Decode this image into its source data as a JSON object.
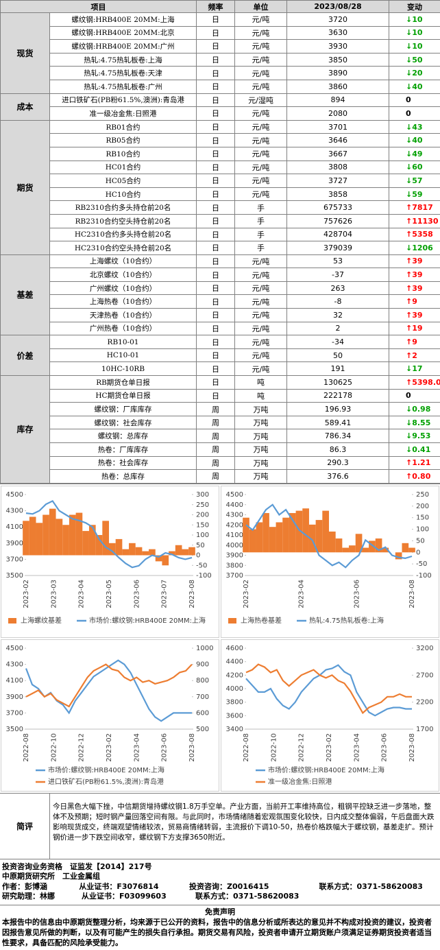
{
  "table": {
    "header": [
      "项目",
      "频率",
      "单位",
      "2023/08/28",
      "变动"
    ],
    "groups": [
      {
        "name": "现货",
        "rows": [
          [
            "螺纹钢:HRB400E 20MM:上海",
            "日",
            "元/吨",
            "3720",
            "↓10"
          ],
          [
            "螺纹钢:HRB400E 20MM:北京",
            "日",
            "元/吨",
            "3630",
            "↓10"
          ],
          [
            "螺纹钢:HRB400E 20MM:广州",
            "日",
            "元/吨",
            "3930",
            "↓10"
          ],
          [
            "热轧:4.75热轧板卷:上海",
            "日",
            "元/吨",
            "3850",
            "↓50"
          ],
          [
            "热轧:4.75热轧板卷:天津",
            "日",
            "元/吨",
            "3890",
            "↓20"
          ],
          [
            "热轧:4.75热轧板卷:广州",
            "日",
            "元/吨",
            "3860",
            "↓40"
          ]
        ]
      },
      {
        "name": "成本",
        "rows": [
          [
            "进口铁矿石(PB粉61.5%,澳洲):青岛港",
            "日",
            "元/湿吨",
            "894",
            "0"
          ],
          [
            "准一级冶金焦:日照港",
            "日",
            "元/吨",
            "2080",
            "0"
          ]
        ]
      },
      {
        "name": "期货",
        "rows": [
          [
            "RB01合约",
            "日",
            "元/吨",
            "3701",
            "↓43"
          ],
          [
            "RB05合约",
            "日",
            "元/吨",
            "3646",
            "↓40"
          ],
          [
            "RB10合约",
            "日",
            "元/吨",
            "3667",
            "↓49"
          ],
          [
            "HC01合约",
            "日",
            "元/吨",
            "3808",
            "↓60"
          ],
          [
            "HC05合约",
            "日",
            "元/吨",
            "3727",
            "↓57"
          ],
          [
            "HC10合约",
            "日",
            "元/吨",
            "3858",
            "↓59"
          ],
          [
            "RB2310合约多头持仓前20名",
            "日",
            "手",
            "675733",
            "↑7817"
          ],
          [
            "RB2310合约空头持仓前20名",
            "日",
            "手",
            "757626",
            "↑11130"
          ],
          [
            "HC2310合约多头持仓前20名",
            "日",
            "手",
            "428704",
            "↑5358"
          ],
          [
            "HC2310合约空头持仓前20名",
            "日",
            "手",
            "379039",
            "↓1206"
          ]
        ]
      },
      {
        "name": "基差",
        "rows": [
          [
            "上海螺纹（10合约）",
            "日",
            "元/吨",
            "53",
            "↑39"
          ],
          [
            "北京螺纹（10合约）",
            "日",
            "元/吨",
            "-37",
            "↑39"
          ],
          [
            "广州螺纹（10合约）",
            "日",
            "元/吨",
            "263",
            "↑39"
          ],
          [
            "上海热卷（10合约）",
            "日",
            "元/吨",
            "-8",
            "↑9"
          ],
          [
            "天津热卷（10合约）",
            "日",
            "元/吨",
            "32",
            "↑39"
          ],
          [
            "广州热卷（10合约）",
            "日",
            "元/吨",
            "2",
            "↑19"
          ]
        ]
      },
      {
        "name": "价差",
        "rows": [
          [
            "RB10-01",
            "日",
            "元/吨",
            "-34",
            "↑9"
          ],
          [
            "HC10-01",
            "日",
            "元/吨",
            "50",
            "↑2"
          ],
          [
            "10HC-10RB",
            "日",
            "元/吨",
            "191",
            "↓17"
          ]
        ]
      },
      {
        "name": "库存",
        "rows": [
          [
            "RB期货仓单日报",
            "日",
            "吨",
            "130625",
            "↑5398.00"
          ],
          [
            "HC期货仓单日报",
            "日",
            "吨",
            "222178",
            "0"
          ],
          [
            "螺纹钢：厂库库存",
            "周",
            "万吨",
            "196.93",
            "↓0.98"
          ],
          [
            "螺纹钢：社会库存",
            "周",
            "万吨",
            "589.41",
            "↓8.55"
          ],
          [
            "螺纹钢：总库存",
            "周",
            "万吨",
            "786.34",
            "↓9.53"
          ],
          [
            "热卷：厂库库存",
            "周",
            "万吨",
            "86.3",
            "↓0.41"
          ],
          [
            "热卷：社会库存",
            "周",
            "万吨",
            "290.3",
            "↑1.21"
          ],
          [
            "热卷：总库存",
            "周",
            "万吨",
            "376.6",
            "↑0.80"
          ]
        ]
      }
    ]
  },
  "chart_data": [
    {
      "type": "combo",
      "xticks": [
        "2023-02",
        "2023-03",
        "2023-04",
        "2023-05",
        "2023-06",
        "2023-07",
        "2023-08"
      ],
      "ylim": [
        3500,
        4500
      ],
      "yticks": [
        3500,
        3700,
        3900,
        4100,
        4300,
        4500
      ],
      "y2lim": [
        -100,
        300
      ],
      "y2ticks": [
        -100,
        -50,
        0,
        50,
        100,
        150,
        200,
        250,
        300
      ],
      "series": [
        {
          "name": "上海螺纹基差",
          "type": "bar",
          "axis": "y2",
          "color": "#ed7d31",
          "values": [
            170,
            190,
            160,
            200,
            230,
            180,
            150,
            200,
            210,
            120,
            150,
            100,
            170,
            60,
            80,
            30,
            60,
            40,
            20,
            30,
            -30,
            -50,
            20,
            50,
            30,
            40
          ]
        },
        {
          "name": "市场价:螺纹钢:HRB400E 20MM:上海",
          "type": "line",
          "color": "#5b9bd5",
          "values": [
            4270,
            4260,
            4300,
            4380,
            4420,
            4300,
            4250,
            4200,
            4180,
            4150,
            4100,
            3950,
            3850,
            3800,
            3720,
            3650,
            3600,
            3620,
            3700,
            3750,
            3730,
            3780,
            3760,
            3720,
            3700,
            3720
          ]
        }
      ]
    },
    {
      "type": "combo",
      "xticks": [
        "2023-02",
        "2023-04",
        "2023-06",
        "2023-08"
      ],
      "ylim": [
        3700,
        4500
      ],
      "yticks": [
        3700,
        3800,
        3900,
        4000,
        4100,
        4200,
        4300,
        4400,
        4500
      ],
      "y2lim": [
        -100,
        250
      ],
      "y2ticks": [
        -100,
        -50,
        0,
        50,
        100,
        150,
        200,
        250
      ],
      "series": [
        {
          "name": "上海热卷基差",
          "type": "bar",
          "axis": "y2",
          "color": "#ed7d31",
          "values": [
            150,
            100,
            130,
            170,
            110,
            130,
            150,
            170,
            180,
            190,
            120,
            140,
            180,
            90,
            60,
            20,
            30,
            80,
            20,
            50,
            60,
            20,
            0,
            -30,
            40,
            20
          ]
        },
        {
          "name": "热轧:4.75热轧板卷:上海",
          "type": "line",
          "color": "#5b9bd5",
          "values": [
            4200,
            4150,
            4250,
            4350,
            4400,
            4300,
            4350,
            4250,
            4150,
            4100,
            4050,
            3900,
            3850,
            3800,
            3830,
            3780,
            3850,
            3900,
            4050,
            4000,
            3950,
            3980,
            3900,
            3880,
            3870,
            3890
          ]
        }
      ]
    },
    {
      "type": "line",
      "xticks": [
        "2022-08",
        "2022-10",
        "2022-12",
        "2023-02",
        "2023-04",
        "2023-06",
        "2023-08"
      ],
      "ylim": [
        3500,
        4500
      ],
      "yticks": [
        3500,
        3700,
        3900,
        4100,
        4300,
        4500
      ],
      "y2lim": [
        500,
        1000
      ],
      "y2ticks": [
        500,
        600,
        700,
        800,
        900,
        1000
      ],
      "series": [
        {
          "name": "市场价:螺纹钢:HRB400E 20MM:上海",
          "type": "line",
          "color": "#5b9bd5",
          "values": [
            4250,
            4050,
            4000,
            3900,
            3950,
            3850,
            3800,
            3700,
            3850,
            3950,
            4050,
            4150,
            4200,
            4250,
            4300,
            4350,
            4300,
            4200,
            4050,
            3900,
            3750,
            3650,
            3600,
            3650,
            3700,
            3700,
            3700,
            3700
          ]
        },
        {
          "name": "进口铁矿石(PB粉61.5%,澳洲):青岛港",
          "type": "line",
          "axis": "y2",
          "color": "#ed7d31",
          "values": [
            700,
            720,
            740,
            700,
            720,
            680,
            660,
            640,
            700,
            760,
            820,
            860,
            880,
            900,
            870,
            860,
            820,
            800,
            820,
            790,
            800,
            780,
            790,
            800,
            820,
            850,
            860,
            900
          ]
        }
      ]
    },
    {
      "type": "line",
      "xticks": [
        "2022-08",
        "2022-10",
        "2022-12",
        "2023-02",
        "2023-04",
        "2023-06",
        "2023-08"
      ],
      "ylim": [
        3400,
        4600
      ],
      "yticks": [
        3400,
        3600,
        3800,
        4000,
        4200,
        4400,
        4600
      ],
      "y2lim": [
        1700,
        3200
      ],
      "y2ticks": [
        1700,
        2200,
        2700,
        3200
      ],
      "series": [
        {
          "name": "市场价:螺纹钢:HRB400E 20MM:上海",
          "type": "line",
          "color": "#5b9bd5",
          "values": [
            4150,
            4050,
            3950,
            3950,
            4000,
            3850,
            3750,
            3700,
            3800,
            3950,
            4050,
            4150,
            4200,
            4280,
            4300,
            4350,
            4250,
            4200,
            3950,
            3800,
            3650,
            3600,
            3650,
            3700,
            3720,
            3720,
            3700,
            3700
          ]
        },
        {
          "name": "准一级冶金焦:日照港",
          "type": "line",
          "axis": "y2",
          "color": "#ed7d31",
          "values": [
            2750,
            2800,
            2900,
            2850,
            2750,
            2800,
            2600,
            2500,
            2600,
            2700,
            2750,
            2800,
            2700,
            2650,
            2700,
            2600,
            2550,
            2400,
            2200,
            2000,
            2100,
            2150,
            2200,
            2300,
            2300,
            2350,
            2300,
            2300
          ]
        }
      ]
    }
  ],
  "review": {
    "label": "简评",
    "text": "今日黑色大幅下挫，中信期货增持螺纹钢1.8万手空单。产业方面，当前开工率维持高位，粗钢平控缺乏进一步落地，整体不及预期；短时钢产量回落空间有限。与此同时，市场情绪随着宏观氛围变化较快，日内成交整体偏弱，午后盘面大跌影响现货成交，终端观望情绪较浓，贸易商情绪转弱，主流报价下调10-50，热卷价格跌幅大于螺纹钢，基差走扩。预计钢价进一步下跌空间收窄，螺纹钢下方支撑3650附近。"
  },
  "info": {
    "lines": [
      "投资咨询业务资格　证监发【2014】217号",
      "中原期货研究所　工业金属组"
    ],
    "rows": [
      [
        "作者：彭博涵",
        "从业证书：F3076814",
        "投资咨询：Z0016415",
        "联系方式：0371-58620083"
      ],
      [
        "研究助理：林娜",
        "从业证书：F03099603",
        "联系方式：0371-58620083"
      ]
    ]
  },
  "disclaimer": {
    "title": "免责声明",
    "text": "本报告中的信息由中原期货整理分析，均来源于已公开的资料，报告中的信息分析或所表达的意见并不构成对投资的建议，投资者因报告意见所做的判断，以及有可能产生的损失自行承担。期货交易有风险，投资者申请开立期货账户须满足证券期货投资者适当性要求，具备匹配的风险承受能力。"
  }
}
